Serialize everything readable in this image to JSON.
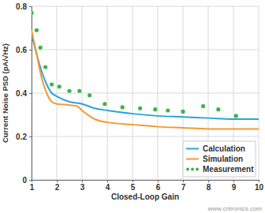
{
  "chart_data": {
    "type": "line",
    "x_label": "Closed-Loop Gain",
    "y_label": "Current Noise PSD (pA/√Hz)",
    "xlim": [
      1,
      10
    ],
    "xticks": [
      1,
      2,
      3,
      4,
      5,
      6,
      7,
      8,
      9,
      10
    ],
    "ylim": [
      0,
      0.8
    ],
    "yticks": [
      0,
      0.2,
      0.4,
      0.6,
      0.8
    ],
    "grid": true,
    "legend": "lower right",
    "annotations": [
      "www.cntronics.com"
    ],
    "series": [
      {
        "name": "Calculation",
        "color": "#2ba3dc",
        "type": "line",
        "line_style": "solid",
        "x": [
          1,
          1.2,
          1.4,
          1.6,
          1.8,
          2,
          2.5,
          3,
          3.5,
          4,
          5,
          6,
          7,
          8,
          9,
          10
        ],
        "values": [
          0.67,
          0.58,
          0.5,
          0.44,
          0.4,
          0.385,
          0.36,
          0.35,
          0.33,
          0.32,
          0.305,
          0.295,
          0.29,
          0.285,
          0.28,
          0.28
        ]
      },
      {
        "name": "Simulation",
        "color": "#f39a33",
        "type": "line",
        "line_style": "solid",
        "x": [
          1,
          1.2,
          1.4,
          1.6,
          1.8,
          2,
          2.5,
          2.8,
          3,
          3.5,
          4,
          5,
          6,
          7,
          8,
          9,
          10
        ],
        "values": [
          0.69,
          0.58,
          0.47,
          0.4,
          0.36,
          0.35,
          0.345,
          0.34,
          0.32,
          0.28,
          0.265,
          0.255,
          0.245,
          0.24,
          0.235,
          0.235,
          0.235
        ]
      },
      {
        "name": "Measurement",
        "color": "#3bb54a",
        "type": "scatter",
        "marker": "circle",
        "x": [
          1,
          1.2,
          1.35,
          1.55,
          1.8,
          2.1,
          2.5,
          2.9,
          3.3,
          3.9,
          4.6,
          5.3,
          5.9,
          6.4,
          7,
          7.8,
          8.4,
          9.1
        ],
        "values": [
          0.77,
          0.69,
          0.61,
          0.52,
          0.44,
          0.43,
          0.41,
          0.41,
          0.39,
          0.35,
          0.335,
          0.33,
          0.325,
          0.32,
          0.315,
          0.34,
          0.325,
          0.295
        ]
      }
    ]
  }
}
